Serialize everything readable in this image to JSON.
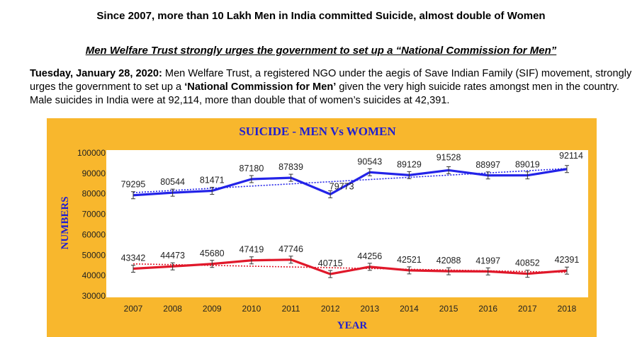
{
  "headline": "Since 2007, more than 10 Lakh Men in India committed Suicide, almost double of Women",
  "subhead": "Men Welfare Trust strongly urges the government to set up a “National Commission for Men”",
  "paragraph": {
    "dateline": "Tuesday, January 28, 2020:",
    "text1": " Men Welfare Trust, a registered NGO under the aegis of Save Indian Family (SIF) movement, strongly urges the government to set up a ",
    "emphasis": "‘National Commission for Men’",
    "text2": " given the very high suicide rates amongst men in the country. Male suicides in India were at 92,114, more than double that of women’s suicides at 42,391."
  },
  "chart_data": {
    "type": "line",
    "title": "SUICIDE - MEN Vs WOMEN",
    "xlabel": "YEAR",
    "ylabel": "NUMBERS",
    "categories": [
      "2007",
      "2008",
      "2009",
      "2010",
      "2011",
      "2012",
      "2013",
      "2014",
      "2015",
      "2016",
      "2017",
      "2018"
    ],
    "ylim": [
      30000,
      100000
    ],
    "yticks": [
      30000,
      40000,
      50000,
      60000,
      70000,
      80000,
      90000,
      100000
    ],
    "series": [
      {
        "values": [
          79295,
          80544,
          81471,
          87180,
          87839,
          79773,
          90543,
          89129,
          91528,
          88997,
          89019,
          92114
        ],
        "color": "#2323e8"
      },
      {
        "values": [
          43342,
          44473,
          45680,
          47419,
          47746,
          40715,
          44256,
          42521,
          42088,
          41997,
          40852,
          42391
        ],
        "color": "#e0182a"
      }
    ],
    "trendlines": true,
    "error_bars": true,
    "legend": "none",
    "grid": false,
    "plot_background": "#ffffff",
    "background": "#f8b72d"
  }
}
